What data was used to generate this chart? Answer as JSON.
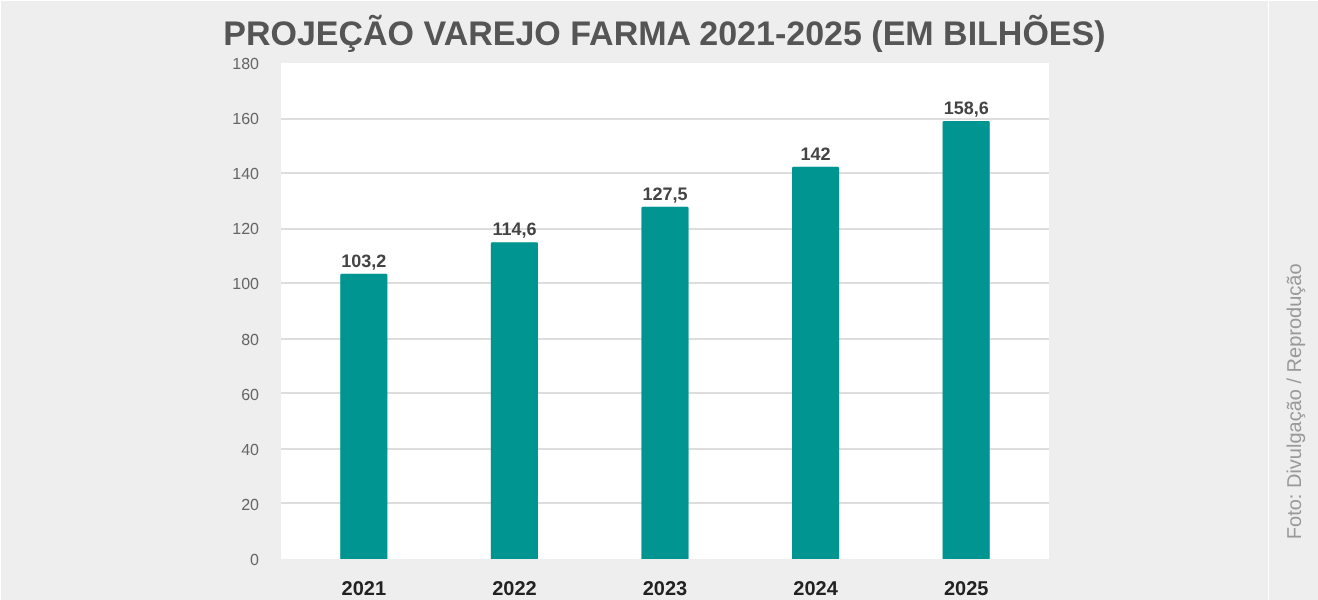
{
  "chart_data": {
    "type": "bar",
    "title": "PROJEÇÃO VAREJO FARMA 2021-2025 (EM BILHÕES)",
    "categories": [
      "2021",
      "2022",
      "2023",
      "2024",
      "2025"
    ],
    "values": [
      103.2,
      114.6,
      127.5,
      142,
      158.6
    ],
    "value_labels": [
      "103,2",
      "114,6",
      "127,5",
      "142",
      "158,6"
    ],
    "color": "#009591",
    "ylim": [
      0,
      180
    ],
    "yticks": [
      0,
      20,
      40,
      60,
      80,
      100,
      120,
      140,
      160,
      180
    ],
    "grid": "y",
    "annotations": [
      "Foto: Divulgação / Reprodução"
    ]
  }
}
